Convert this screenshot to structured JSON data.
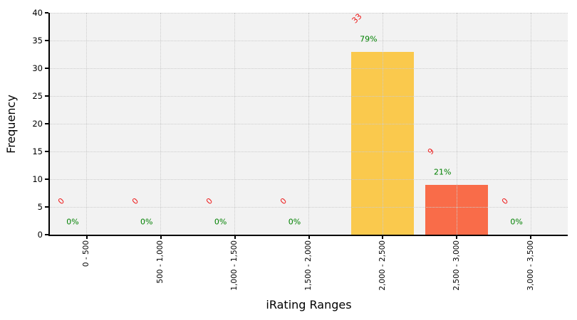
{
  "chart_data": {
    "type": "bar",
    "title": "",
    "xlabel": "iRating Ranges",
    "ylabel": "Frequency",
    "categories": [
      "0 - 500",
      "500 - 1,000",
      "1,000 - 1,500",
      "1,500 - 2,000",
      "2,000 - 2,500",
      "2,500 - 3,000",
      "3,000 - 3,500"
    ],
    "values": [
      0,
      0,
      0,
      0,
      33,
      9,
      0
    ],
    "count_labels": [
      "0",
      "0",
      "0",
      "0",
      "33",
      "9",
      "0"
    ],
    "percent_labels": [
      "0%",
      "0%",
      "0%",
      "0%",
      "79%",
      "21%",
      "0%"
    ],
    "bar_colors": [
      "#fac94d",
      "#fac94d",
      "#fac94d",
      "#fac94d",
      "#fac94d",
      "#f96c49",
      "#fac94d"
    ],
    "ylim": [
      0,
      40
    ],
    "yticks": [
      "0",
      "5",
      "10",
      "15",
      "20",
      "25",
      "30",
      "35",
      "40"
    ],
    "grid": "dotted-both-axes-above-bars",
    "legend_position": "none",
    "colors": {
      "count_label": "#ee1c1c",
      "percent_label": "#008000",
      "plot_background": "#f2f2f2",
      "gridline": "#cccccc",
      "bar_main": "#fac94d",
      "bar_highlight": "#f96c49",
      "axis": "#000000"
    }
  }
}
